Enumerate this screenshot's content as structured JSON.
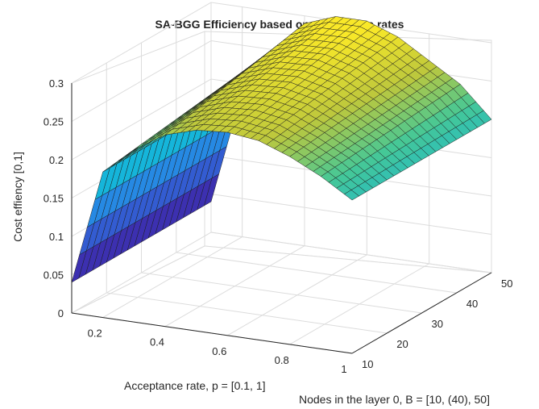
{
  "chart_data": {
    "type": "surface",
    "title": "SA-BGG Efficiency based on acceptance rates",
    "xlabel": "Acceptance rate, p = [0.1, 1]",
    "ylabel": "Nodes in the layer 0, B = [10, (40), 50]",
    "zlabel": "Cost effiency [0,1]",
    "xlim": [
      0.1,
      1
    ],
    "ylim": [
      10,
      50
    ],
    "zlim": [
      0,
      0.3
    ],
    "x_ticks": [
      "0.2",
      "0.4",
      "0.6",
      "0.8",
      "1"
    ],
    "y_ticks": [
      "10",
      "20",
      "30",
      "40",
      "50"
    ],
    "z_ticks": [
      "0",
      "0.05",
      "0.1",
      "0.15",
      "0.2",
      "0.25",
      "0.3"
    ],
    "grid": true,
    "colormap": "parula",
    "series": [
      {
        "x": [
          0.1,
          0.2,
          0.3,
          0.4,
          0.5,
          0.6,
          0.7,
          0.8,
          0.9,
          1.0
        ],
        "values_at_B10": [
          0.04,
          0.19,
          0.225,
          0.25,
          0.262,
          0.265,
          0.26,
          0.245,
          0.225,
          0.2
        ],
        "values_at_B50": [
          0.04,
          0.19,
          0.25,
          0.29,
          0.305,
          0.305,
          0.29,
          0.265,
          0.24,
          0.2
        ]
      }
    ]
  }
}
